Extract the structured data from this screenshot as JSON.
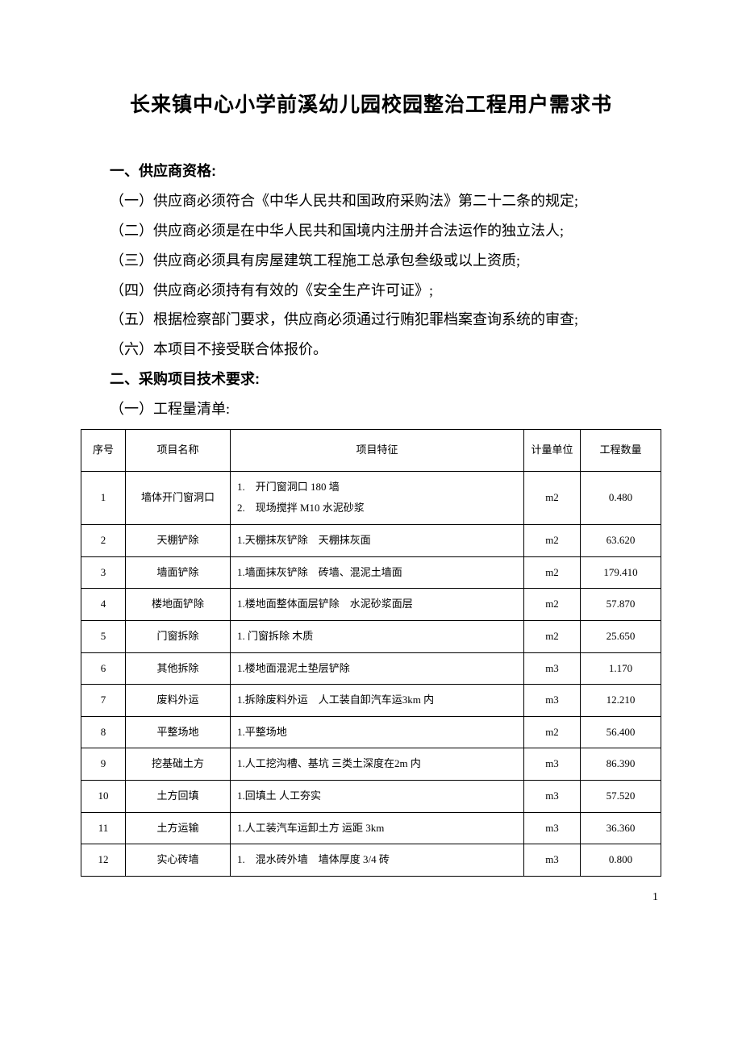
{
  "title": "长来镇中心小学前溪幼儿园校园整治工程用户需求书",
  "sections": {
    "s1": {
      "heading": "一、供应商资格:",
      "items": [
        "（一）供应商必须符合《中华人民共和国政府采购法》第二十二条的规定;",
        "（二）供应商必须是在中华人民共和国境内注册并合法运作的独立法人;",
        "（三）供应商必须具有房屋建筑工程施工总承包叁级或以上资质;",
        "（四）供应商必须持有有效的《安全生产许可证》;",
        "（五）根据检察部门要求，供应商必须通过行贿犯罪档案查询系统的审查;",
        "（六）本项目不接受联合体报价。"
      ]
    },
    "s2": {
      "heading": "二、采购项目技术要求:",
      "sub1": "（一）工程量清单:"
    }
  },
  "table": {
    "headers": {
      "seq": "序号",
      "name": "项目名称",
      "feature": "项目特征",
      "unit": "计量单位",
      "qty": "工程数量"
    },
    "rows": [
      {
        "seq": "1",
        "name": "墙体开门窗洞口",
        "feature": "1.　开门窗洞口 180 墙\n2.　现场搅拌 M10 水泥砂浆",
        "unit": "m2",
        "qty": "0.480"
      },
      {
        "seq": "2",
        "name": "天棚铲除",
        "feature": "1.天棚抹灰铲除　天棚抹灰面",
        "unit": "m2",
        "qty": "63.620"
      },
      {
        "seq": "3",
        "name": "墙面铲除",
        "feature": "1.墙面抹灰铲除　砖墙、混泥土墙面",
        "unit": "m2",
        "qty": "179.410"
      },
      {
        "seq": "4",
        "name": "楼地面铲除",
        "feature": "1.楼地面整体面层铲除　水泥砂浆面层",
        "unit": "m2",
        "qty": "57.870"
      },
      {
        "seq": "5",
        "name": "门窗拆除",
        "feature": "1. 门窗拆除 木质",
        "unit": "m2",
        "qty": "25.650"
      },
      {
        "seq": "6",
        "name": "其他拆除",
        "feature": "1.楼地面混泥土垫层铲除",
        "unit": "m3",
        "qty": "1.170"
      },
      {
        "seq": "7",
        "name": "废料外运",
        "feature": "1.拆除废料外运　人工装自卸汽车运3km 内",
        "unit": "m3",
        "qty": "12.210"
      },
      {
        "seq": "8",
        "name": "平整场地",
        "feature": "1.平整场地",
        "unit": "m2",
        "qty": "56.400"
      },
      {
        "seq": "9",
        "name": "挖基础土方",
        "feature": "1.人工挖沟槽、基坑 三类土深度在2m 内",
        "unit": "m3",
        "qty": "86.390"
      },
      {
        "seq": "10",
        "name": "土方回填",
        "feature": "1.回填土 人工夯实",
        "unit": "m3",
        "qty": "57.520"
      },
      {
        "seq": "11",
        "name": "土方运输",
        "feature": "1.人工装汽车运卸土方 运距 3km",
        "unit": "m3",
        "qty": "36.360"
      },
      {
        "seq": "12",
        "name": "实心砖墙",
        "feature": "1.　混水砖外墙　墙体厚度 3/4 砖",
        "unit": "m3",
        "qty": "0.800"
      }
    ]
  },
  "pageNumber": "1"
}
